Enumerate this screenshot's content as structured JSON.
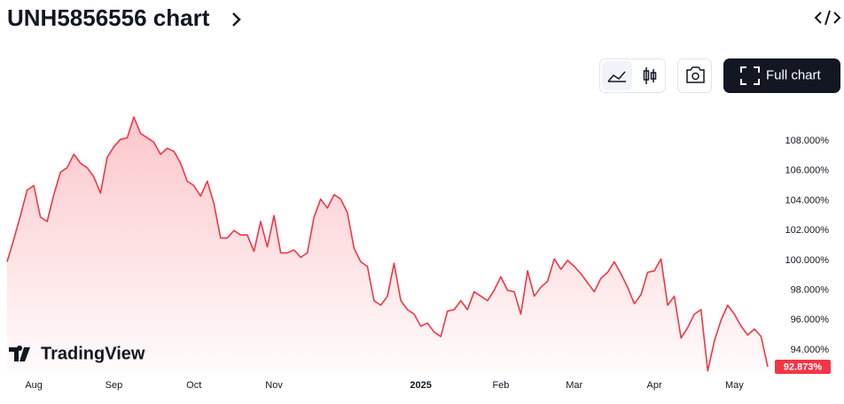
{
  "header": {
    "title": "UNH5856556 chart",
    "button": "Full chart",
    "logo": "TradingView"
  },
  "chart_data": {
    "type": "line",
    "color": "#f23645",
    "values": [
      99.9,
      101.4,
      103.0,
      104.7,
      105.0,
      102.9,
      102.6,
      104.4,
      105.9,
      106.2,
      107.1,
      106.5,
      106.2,
      105.6,
      104.5,
      106.9,
      107.6,
      108.1,
      108.2,
      109.6,
      108.5,
      108.2,
      107.9,
      107.1,
      107.5,
      107.3,
      106.5,
      105.3,
      105.0,
      104.3,
      105.3,
      103.8,
      101.5,
      101.5,
      102.0,
      101.7,
      101.7,
      100.6,
      102.6,
      100.9,
      103.0,
      100.5,
      100.5,
      100.7,
      100.2,
      100.5,
      102.9,
      104.1,
      103.5,
      104.4,
      104.1,
      103.2,
      100.8,
      99.9,
      99.6,
      97.3,
      97.0,
      97.6,
      99.8,
      97.3,
      96.7,
      96.4,
      95.6,
      95.8,
      95.2,
      94.9,
      96.6,
      96.7,
      97.3,
      96.7,
      97.9,
      97.6,
      97.3,
      98.0,
      98.9,
      98.0,
      97.9,
      96.4,
      99.3,
      97.6,
      98.2,
      98.6,
      100.1,
      99.4,
      100.0,
      99.6,
      99.1,
      98.5,
      97.9,
      98.8,
      99.2,
      99.9,
      99.1,
      98.2,
      97.1,
      97.7,
      99.2,
      99.3,
      100.1,
      97.0,
      97.6,
      94.8,
      95.5,
      96.4,
      96.7,
      92.6,
      94.6,
      96.0,
      97.0,
      96.4,
      95.6,
      95.0,
      95.4,
      94.9,
      92.873
    ],
    "value_labels": [
      null,
      null,
      null,
      null,
      null,
      null,
      null,
      null,
      null,
      null,
      null,
      null,
      null,
      null,
      null,
      null,
      null,
      null,
      null,
      null,
      null,
      null,
      null,
      null,
      null,
      null,
      null,
      null,
      null,
      null,
      null,
      null,
      null,
      null,
      null,
      null,
      null,
      null,
      null,
      null,
      null,
      null,
      null,
      null,
      null,
      null,
      null,
      null,
      null,
      null,
      null,
      null,
      null,
      null,
      null,
      null,
      null,
      null,
      null,
      null,
      null,
      null,
      null,
      null,
      null,
      null,
      null,
      null,
      null,
      null,
      null,
      null,
      null,
      null,
      null,
      null,
      null,
      null,
      null,
      null,
      null,
      null,
      null,
      null,
      null,
      null,
      null,
      null,
      null,
      null,
      null,
      null,
      null,
      null,
      null,
      null,
      null,
      null,
      null,
      null,
      null,
      null,
      null,
      null,
      null,
      null,
      null,
      null,
      null,
      null,
      null,
      null,
      null,
      null,
      "92.873%"
    ],
    "xlim": [
      0,
      114
    ],
    "xticks": [
      {
        "value": 4,
        "label": "Aug"
      },
      {
        "value": 16,
        "label": "Sep"
      },
      {
        "value": 28,
        "label": "Oct"
      },
      {
        "value": 40,
        "label": "Nov"
      },
      {
        "value": 62,
        "label": "2025"
      },
      {
        "value": 74,
        "label": "Feb"
      },
      {
        "value": 85,
        "label": "Mar"
      },
      {
        "value": 97,
        "label": "Apr"
      },
      {
        "value": 109,
        "label": "May"
      }
    ],
    "ylim": [
      92.52,
      110.31
    ],
    "yticks": [
      {
        "value": 94,
        "label": "94.000%"
      },
      {
        "value": 96,
        "label": "96.000%"
      },
      {
        "value": 98,
        "label": "98.000%"
      },
      {
        "value": 100,
        "label": "100.000%"
      },
      {
        "value": 102,
        "label": "102.000%"
      },
      {
        "value": 104,
        "label": "104.000%"
      },
      {
        "value": 106,
        "label": "106.000%"
      },
      {
        "value": 108,
        "label": "108.000%"
      }
    ]
  }
}
